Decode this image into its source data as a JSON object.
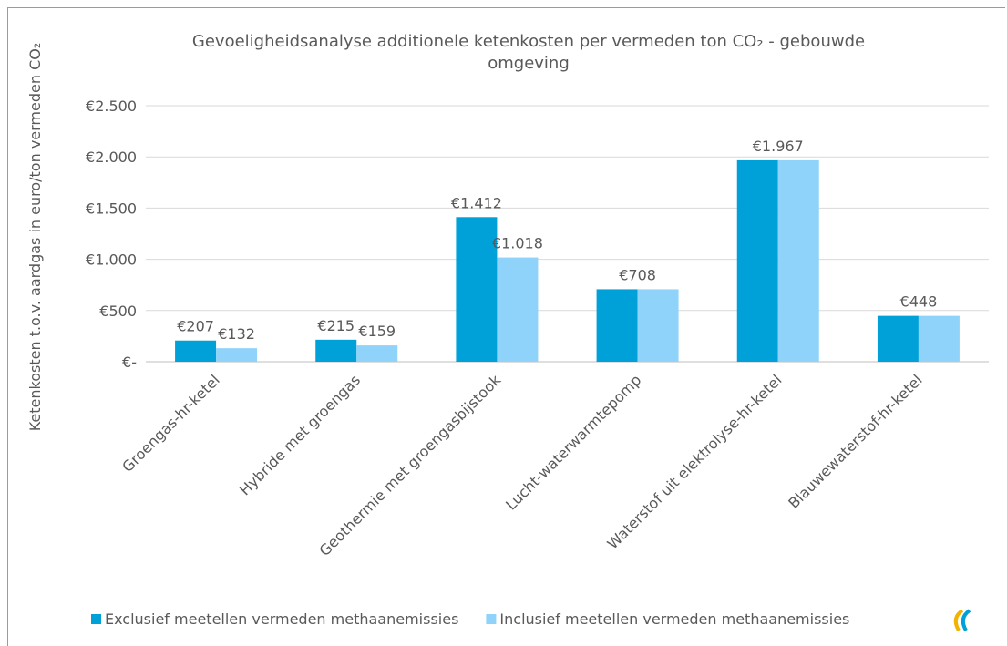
{
  "chart_data": {
    "type": "bar",
    "title": "Gevoeligheidsanalyse additionele ketenkosten per vermeden ton CO₂ - gebouwde omgeving",
    "y_label": "Ketenkosten t.o.v. aardgas in euro/ton vermeden CO₂",
    "categories": [
      "Groengas-hr-ketel",
      "Hybride met groengas",
      "Geothermie met groengasbijstook",
      "Lucht-waterwarmtepomp",
      "Waterstof uit elektrolyse-hr-ketel",
      "Blauwewaterstof-hr-ketel"
    ],
    "series": [
      {
        "name": "Exclusief meetellen vermeden methaanemissies",
        "color": "#00a0d8",
        "values": [
          207,
          215,
          1412,
          708,
          1967,
          448
        ],
        "value_labels": [
          "€207",
          "€215",
          "€1.412",
          "€708",
          "€1.967",
          "€448"
        ]
      },
      {
        "name": "Inclusief meetellen vermeden methaanemissies",
        "color": "#8fd3fb",
        "values": [
          132,
          159,
          1018,
          708,
          1967,
          448
        ],
        "value_labels": [
          "€132",
          "€159",
          "€1.018",
          null,
          null,
          null
        ]
      }
    ],
    "ylim": [
      0,
      2500
    ],
    "yticks": [
      {
        "value": 0,
        "label": "€-"
      },
      {
        "value": 500,
        "label": "€500"
      },
      {
        "value": 1000,
        "label": "€1.000"
      },
      {
        "value": 1500,
        "label": "€1.500"
      },
      {
        "value": 2000,
        "label": "€2.000"
      },
      {
        "value": 2500,
        "label": "€2.500"
      }
    ],
    "grid": true,
    "legend": "bottom"
  }
}
